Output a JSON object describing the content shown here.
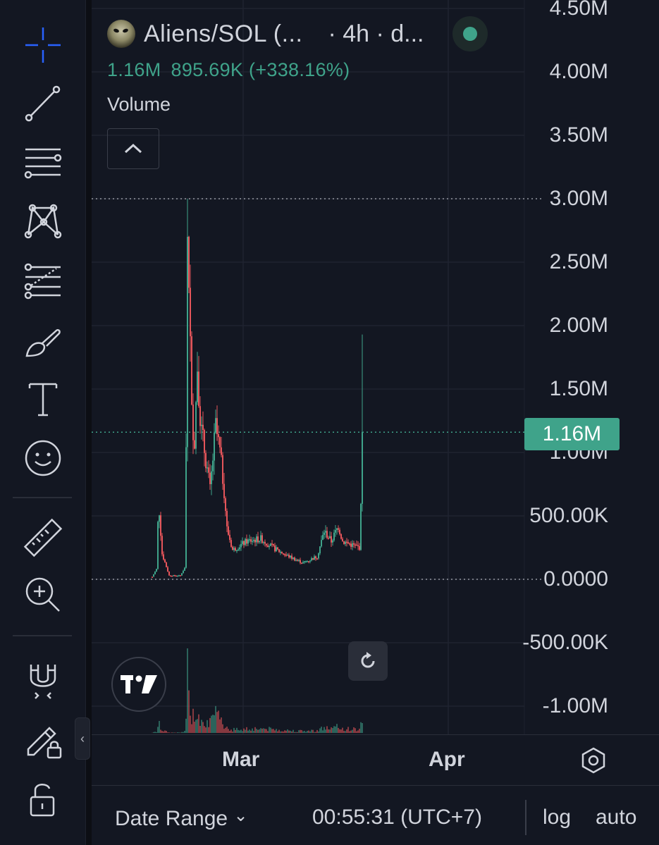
{
  "toolbar": {
    "tools": [
      {
        "name": "crosshair-tool",
        "icon": "crosshair-icon"
      },
      {
        "name": "trend-line-tool",
        "icon": "trend-line-icon"
      },
      {
        "name": "horizontal-lines-tool",
        "icon": "horizontal-lines-icon"
      },
      {
        "name": "pattern-tool",
        "icon": "xabcd-pattern-icon"
      },
      {
        "name": "fib-tool",
        "icon": "fib-retracement-icon"
      },
      {
        "name": "brush-tool",
        "icon": "brush-icon"
      },
      {
        "name": "text-tool",
        "icon": "text-icon"
      },
      {
        "name": "emoji-tool",
        "icon": "smiley-icon"
      },
      {
        "name": "ruler-tool",
        "icon": "ruler-icon"
      },
      {
        "name": "zoom-tool",
        "icon": "zoom-in-icon"
      },
      {
        "name": "magnet-tool",
        "icon": "magnet-icon"
      },
      {
        "name": "lock-drawings-tool",
        "icon": "pencil-lock-icon"
      },
      {
        "name": "unlock-tool",
        "icon": "unlock-icon"
      }
    ],
    "collapse_glyph": "‹"
  },
  "legend": {
    "symbol": "Aliens/SOL (...",
    "interval": "· 4h · d...",
    "price": "1.16M",
    "change": "895.69K (+338.16%)",
    "volume_label": "Volume",
    "status_color": "#3fa38a"
  },
  "price_axis": {
    "labels": [
      "4.50M",
      "4.00M",
      "3.50M",
      "3.00M",
      "2.50M",
      "2.00M",
      "1.50M",
      "1.00M",
      "500.00K",
      "0.0000",
      "-500.00K",
      "-1.00M"
    ],
    "current_price_tag": "1.16M"
  },
  "time_axis": {
    "labels": [
      "Mar",
      "Apr"
    ]
  },
  "bottom_bar": {
    "date_range": "Date Range",
    "dropdown_glyph": "⌄",
    "clock": "00:55:31 (UTC+7)",
    "log": "log",
    "auto": "auto"
  },
  "colors": {
    "up": "#3fa38a",
    "down": "#e5555a",
    "background": "#131722",
    "grid": "#1f2330"
  },
  "chart_data": {
    "type": "candlestick",
    "ylim": [
      -1200000,
      4600000
    ],
    "guides": [
      3000000,
      0,
      1160000
    ],
    "last_price": 1160000,
    "title": "",
    "xlabel": "",
    "ylabel": ""
  }
}
